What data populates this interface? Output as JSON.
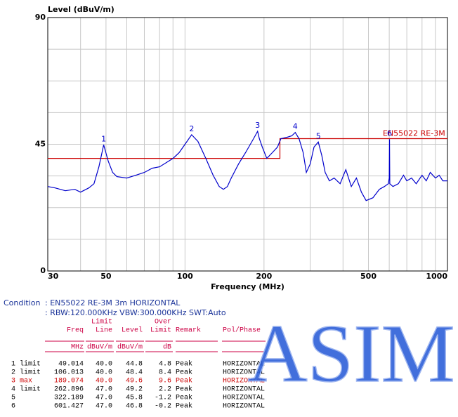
{
  "chart_data": {
    "type": "line",
    "ylabel": "Level (dBuV/m)",
    "xlabel": "Frequency (MHz)",
    "xscale": "log",
    "xlim": [
      30,
      1000
    ],
    "xticks": [
      30,
      50,
      100,
      200,
      500,
      1000
    ],
    "xminor": [
      40,
      60,
      70,
      80,
      90,
      300,
      400,
      600,
      700,
      800,
      900
    ],
    "ylim": [
      0,
      90
    ],
    "yticks": [
      0,
      45,
      90
    ],
    "yminor": [
      11.25,
      22.5,
      33.75,
      56.25,
      67.5,
      78.75
    ],
    "grid": true,
    "series": [
      {
        "name": "EN55022 RE-3M",
        "color": "#cc0000",
        "x": [
          30,
          230,
          230,
          1000
        ],
        "values": [
          40,
          40,
          47,
          47
        ]
      },
      {
        "name": "Level",
        "color": "#0000cc",
        "x": [
          30,
          32,
          35,
          38,
          40,
          43,
          45,
          47,
          49,
          51,
          53,
          55,
          60,
          65,
          70,
          75,
          80,
          90,
          95,
          100,
          106,
          112,
          120,
          128,
          135,
          140,
          145,
          150,
          160,
          170,
          180,
          185,
          189,
          192,
          197,
          205,
          215,
          225,
          232,
          245,
          255,
          263,
          272,
          282,
          290,
          300,
          310,
          322,
          332,
          342,
          355,
          370,
          390,
          410,
          430,
          450,
          470,
          490,
          520,
          550,
          575,
          595,
          600,
          601.4,
          603,
          620,
          650,
          680,
          700,
          730,
          760,
          800,
          830,
          860,
          900,
          930,
          960,
          1000
        ],
        "values": [
          30,
          29.5,
          28.5,
          29,
          28,
          29.5,
          31,
          37,
          44.8,
          39,
          35,
          33.5,
          33,
          34,
          35,
          36.5,
          37,
          40,
          42,
          45,
          48.4,
          46,
          40,
          34,
          30,
          29,
          30,
          33,
          38,
          42,
          46,
          48,
          49.6,
          47,
          44,
          40,
          42,
          44,
          47,
          47.5,
          48,
          49.2,
          47,
          42,
          35,
          38,
          44,
          45.8,
          41,
          35,
          32,
          33,
          31,
          36,
          30,
          33,
          28,
          25,
          26,
          29,
          30,
          31,
          33,
          46.8,
          31,
          30,
          31,
          34,
          32,
          33,
          31,
          34,
          32,
          35,
          33,
          34,
          32,
          32
        ]
      }
    ],
    "markers": [
      {
        "label": "1",
        "x": 49.014,
        "y": 44.8
      },
      {
        "label": "2",
        "x": 106.013,
        "y": 48.4
      },
      {
        "label": "3",
        "x": 189.074,
        "y": 49.6
      },
      {
        "label": "4",
        "x": 262.896,
        "y": 49.2
      },
      {
        "label": "5",
        "x": 322.189,
        "y": 45.8
      },
      {
        "label": "6",
        "x": 601.427,
        "y": 46.8
      }
    ]
  },
  "condition": {
    "label": "Condition",
    "lines": [
      ": EN55022 RE-3M 3m HORIZONTAL",
      ": RBW:120.000KHz VBW:300.000KHz SWT:Auto"
    ]
  },
  "table": {
    "columns": [
      {
        "name": [
          "Freq"
        ],
        "unit": "MHz"
      },
      {
        "name": [
          "Limit",
          "Line"
        ],
        "unit": "dBuV/m"
      },
      {
        "name": [
          "Level"
        ],
        "unit": "dBuV/m"
      },
      {
        "name": [
          "Over",
          "Limit"
        ],
        "unit": "dB"
      },
      {
        "name": [
          "Remark"
        ]
      },
      {
        "name": [
          "Pol/Phase"
        ]
      }
    ],
    "highlight_row": 2,
    "highlight_color": "#cc0000",
    "rows": [
      [
        "1 limit",
        "49.014",
        "40.0",
        "44.8",
        "4.8",
        "Peak",
        "HORIZONTAL"
      ],
      [
        "2 limit",
        "106.013",
        "40.0",
        "48.4",
        "8.4",
        "Peak",
        "HORIZONTAL"
      ],
      [
        "3 max",
        "189.074",
        "40.0",
        "49.6",
        "9.6",
        "Peak",
        "HORIZONTAL"
      ],
      [
        "4 limit",
        "262.896",
        "47.0",
        "49.2",
        "2.2",
        "Peak",
        "HORIZONTAL"
      ],
      [
        "5",
        "322.189",
        "47.0",
        "45.8",
        "-1.2",
        "Peak",
        "HORIZONTAL"
      ],
      [
        "6",
        "601.427",
        "47.0",
        "46.8",
        "-0.2",
        "Peak",
        "HORIZONTAL"
      ]
    ]
  },
  "watermark": "ASIM"
}
